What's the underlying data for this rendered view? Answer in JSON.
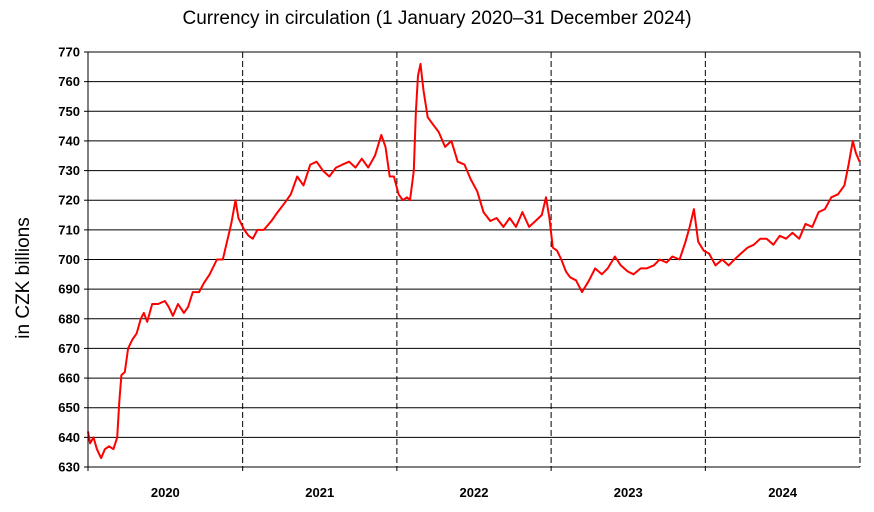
{
  "chart_data": {
    "type": "line",
    "title": "Currency in circulation (1 January 2020–31 December 2024)",
    "ylabel": "in CZK billions",
    "xlabel": "",
    "ylim": [
      630,
      770
    ],
    "y_ticks": [
      630,
      640,
      650,
      660,
      670,
      680,
      690,
      700,
      710,
      720,
      730,
      740,
      750,
      760,
      770
    ],
    "x_categories": [
      "2020",
      "2021",
      "2022",
      "2023",
      "2024"
    ],
    "x_range": [
      "2020-01-01",
      "2024-12-31"
    ],
    "grid": "horizontal solid, vertical dashed at year boundaries",
    "line_color": "#ff0000",
    "series": [
      {
        "values": [
          [
            "2020-01-01",
            642
          ],
          [
            "2020-01-06",
            638
          ],
          [
            "2020-01-14",
            640
          ],
          [
            "2020-01-22",
            636
          ],
          [
            "2020-02-01",
            633
          ],
          [
            "2020-02-10",
            636
          ],
          [
            "2020-02-20",
            637
          ],
          [
            "2020-03-01",
            636
          ],
          [
            "2020-03-10",
            640
          ],
          [
            "2020-03-15",
            652
          ],
          [
            "2020-03-20",
            661
          ],
          [
            "2020-03-28",
            662
          ],
          [
            "2020-04-05",
            670
          ],
          [
            "2020-04-15",
            673
          ],
          [
            "2020-04-25",
            675
          ],
          [
            "2020-05-05",
            680
          ],
          [
            "2020-05-12",
            682
          ],
          [
            "2020-05-20",
            679
          ],
          [
            "2020-06-01",
            685
          ],
          [
            "2020-06-15",
            685
          ],
          [
            "2020-07-01",
            686
          ],
          [
            "2020-07-10",
            684
          ],
          [
            "2020-07-20",
            681
          ],
          [
            "2020-08-01",
            685
          ],
          [
            "2020-08-15",
            682
          ],
          [
            "2020-08-25",
            684
          ],
          [
            "2020-09-05",
            689
          ],
          [
            "2020-09-20",
            689
          ],
          [
            "2020-10-01",
            692
          ],
          [
            "2020-10-15",
            695
          ],
          [
            "2020-11-01",
            700
          ],
          [
            "2020-11-15",
            700
          ],
          [
            "2020-11-25",
            706
          ],
          [
            "2020-12-05",
            712
          ],
          [
            "2020-12-15",
            720
          ],
          [
            "2020-12-22",
            714
          ],
          [
            "2021-01-05",
            710
          ],
          [
            "2021-01-15",
            708
          ],
          [
            "2021-01-25",
            707
          ],
          [
            "2021-02-05",
            710
          ],
          [
            "2021-02-20",
            710
          ],
          [
            "2021-03-10",
            713
          ],
          [
            "2021-03-25",
            716
          ],
          [
            "2021-04-10",
            719
          ],
          [
            "2021-04-25",
            722
          ],
          [
            "2021-05-10",
            728
          ],
          [
            "2021-05-25",
            725
          ],
          [
            "2021-06-10",
            732
          ],
          [
            "2021-06-25",
            733
          ],
          [
            "2021-07-10",
            730
          ],
          [
            "2021-07-25",
            728
          ],
          [
            "2021-08-10",
            731
          ],
          [
            "2021-08-25",
            732
          ],
          [
            "2021-09-10",
            733
          ],
          [
            "2021-09-25",
            731
          ],
          [
            "2021-10-10",
            734
          ],
          [
            "2021-10-25",
            731
          ],
          [
            "2021-11-10",
            735
          ],
          [
            "2021-11-25",
            742
          ],
          [
            "2021-12-05",
            738
          ],
          [
            "2021-12-15",
            728
          ],
          [
            "2021-12-25",
            728
          ],
          [
            "2022-01-05",
            722
          ],
          [
            "2022-01-15",
            720
          ],
          [
            "2022-01-25",
            721
          ],
          [
            "2022-02-01",
            720
          ],
          [
            "2022-02-10",
            730
          ],
          [
            "2022-02-15",
            750
          ],
          [
            "2022-02-20",
            762
          ],
          [
            "2022-02-26",
            766
          ],
          [
            "2022-03-05",
            757
          ],
          [
            "2022-03-15",
            748
          ],
          [
            "2022-03-25",
            746
          ],
          [
            "2022-04-10",
            743
          ],
          [
            "2022-04-25",
            738
          ],
          [
            "2022-05-10",
            740
          ],
          [
            "2022-05-25",
            733
          ],
          [
            "2022-06-10",
            732
          ],
          [
            "2022-06-25",
            727
          ],
          [
            "2022-07-10",
            723
          ],
          [
            "2022-07-25",
            716
          ],
          [
            "2022-08-10",
            713
          ],
          [
            "2022-08-25",
            714
          ],
          [
            "2022-09-10",
            711
          ],
          [
            "2022-09-25",
            714
          ],
          [
            "2022-10-10",
            711
          ],
          [
            "2022-10-25",
            716
          ],
          [
            "2022-11-10",
            711
          ],
          [
            "2022-11-25",
            713
          ],
          [
            "2022-12-10",
            715
          ],
          [
            "2022-12-20",
            721
          ],
          [
            "2022-12-28",
            714
          ],
          [
            "2023-01-05",
            704
          ],
          [
            "2023-01-15",
            703
          ],
          [
            "2023-01-25",
            700
          ],
          [
            "2023-02-05",
            696
          ],
          [
            "2023-02-15",
            694
          ],
          [
            "2023-03-01",
            693
          ],
          [
            "2023-03-15",
            689
          ],
          [
            "2023-04-01",
            693
          ],
          [
            "2023-04-15",
            697
          ],
          [
            "2023-05-01",
            695
          ],
          [
            "2023-05-15",
            697
          ],
          [
            "2023-06-01",
            701
          ],
          [
            "2023-06-15",
            698
          ],
          [
            "2023-07-01",
            696
          ],
          [
            "2023-07-15",
            695
          ],
          [
            "2023-08-01",
            697
          ],
          [
            "2023-08-15",
            697
          ],
          [
            "2023-09-01",
            698
          ],
          [
            "2023-09-15",
            700
          ],
          [
            "2023-10-01",
            699
          ],
          [
            "2023-10-15",
            701
          ],
          [
            "2023-11-01",
            700
          ],
          [
            "2023-11-15",
            706
          ],
          [
            "2023-11-25",
            711
          ],
          [
            "2023-12-05",
            717
          ],
          [
            "2023-12-15",
            706
          ],
          [
            "2023-12-28",
            703
          ],
          [
            "2024-01-10",
            702
          ],
          [
            "2024-01-25",
            698
          ],
          [
            "2024-02-10",
            700
          ],
          [
            "2024-02-25",
            698
          ],
          [
            "2024-03-10",
            700
          ],
          [
            "2024-03-25",
            702
          ],
          [
            "2024-04-10",
            704
          ],
          [
            "2024-04-25",
            705
          ],
          [
            "2024-05-10",
            707
          ],
          [
            "2024-05-25",
            707
          ],
          [
            "2024-06-10",
            705
          ],
          [
            "2024-06-25",
            708
          ],
          [
            "2024-07-10",
            707
          ],
          [
            "2024-07-25",
            709
          ],
          [
            "2024-08-10",
            707
          ],
          [
            "2024-08-25",
            712
          ],
          [
            "2024-09-10",
            711
          ],
          [
            "2024-09-25",
            716
          ],
          [
            "2024-10-10",
            717
          ],
          [
            "2024-10-25",
            721
          ],
          [
            "2024-11-10",
            722
          ],
          [
            "2024-11-25",
            725
          ],
          [
            "2024-12-05",
            732
          ],
          [
            "2024-12-15",
            740
          ],
          [
            "2024-12-22",
            736
          ],
          [
            "2024-12-31",
            733
          ]
        ]
      }
    ]
  }
}
